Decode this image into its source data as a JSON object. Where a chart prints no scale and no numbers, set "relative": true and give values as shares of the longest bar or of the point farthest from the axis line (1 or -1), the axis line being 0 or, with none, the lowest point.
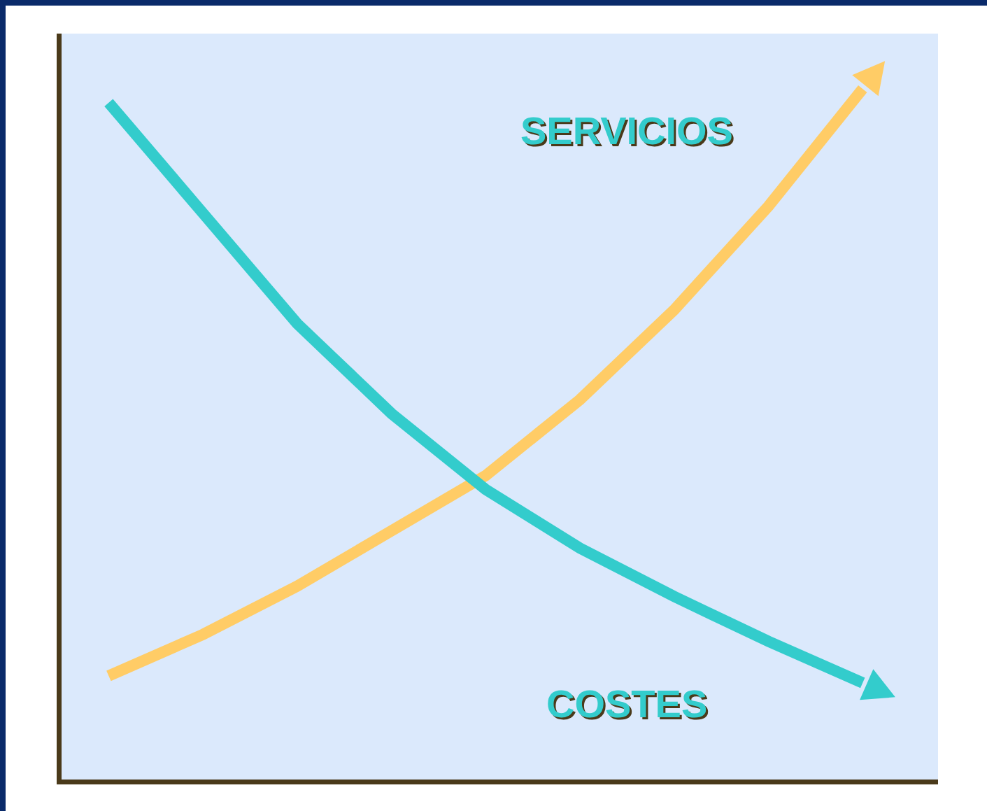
{
  "chart_data": {
    "type": "line",
    "relative": true,
    "marker": "none",
    "line_style": "solid",
    "categories": [
      null,
      null,
      null,
      null,
      null,
      null,
      null,
      null,
      null
    ],
    "series": [
      {
        "name": "SERVICIOS",
        "color": "#ffcc66",
        "values": [
          0.15,
          0.21,
          0.28,
          0.36,
          0.44,
          0.55,
          0.68,
          0.83,
          1.0
        ]
      },
      {
        "name": "COSTES",
        "color": "#33cccc",
        "values": [
          0.98,
          0.82,
          0.66,
          0.53,
          0.42,
          0.335,
          0.265,
          0.2,
          0.14
        ]
      }
    ]
  }
}
